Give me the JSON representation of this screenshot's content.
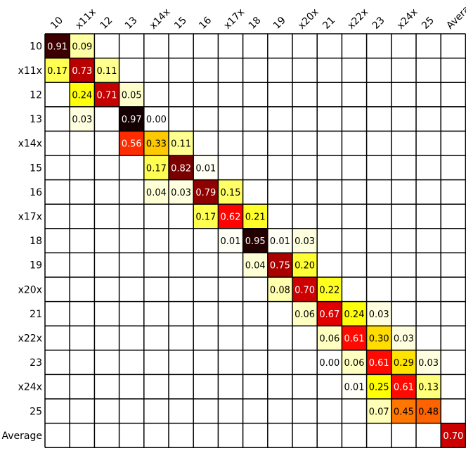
{
  "chart_data": {
    "type": "heatmap",
    "title": "",
    "xlabel": "",
    "ylabel": "",
    "x_labels": [
      "10",
      "x11x",
      "12",
      "13",
      "x14x",
      "15",
      "16",
      "x17x",
      "18",
      "19",
      "x20x",
      "21",
      "x22x",
      "23",
      "x24x",
      "25",
      "Average"
    ],
    "y_labels": [
      "10",
      "x11x",
      "12",
      "13",
      "x14x",
      "15",
      "16",
      "x17x",
      "18",
      "19",
      "x20x",
      "21",
      "x22x",
      "23",
      "x24x",
      "25",
      "Average"
    ],
    "colormap": "hot_r",
    "cells": [
      {
        "row": 0,
        "col": 0,
        "value": 0.91,
        "label": "0.91"
      },
      {
        "row": 0,
        "col": 1,
        "value": 0.09,
        "label": "0.09"
      },
      {
        "row": 1,
        "col": 0,
        "value": 0.17,
        "label": "0.17"
      },
      {
        "row": 1,
        "col": 1,
        "value": 0.73,
        "label": "0.73"
      },
      {
        "row": 1,
        "col": 2,
        "value": 0.11,
        "label": "0.11"
      },
      {
        "row": 2,
        "col": 1,
        "value": 0.24,
        "label": "0.24"
      },
      {
        "row": 2,
        "col": 2,
        "value": 0.71,
        "label": "0.71"
      },
      {
        "row": 2,
        "col": 3,
        "value": 0.05,
        "label": "0.05"
      },
      {
        "row": 3,
        "col": 1,
        "value": 0.03,
        "label": "0.03"
      },
      {
        "row": 3,
        "col": 3,
        "value": 0.97,
        "label": "0.97"
      },
      {
        "row": 3,
        "col": 4,
        "value": 0.0,
        "label": "0.00"
      },
      {
        "row": 4,
        "col": 3,
        "value": 0.56,
        "label": "0.56"
      },
      {
        "row": 4,
        "col": 4,
        "value": 0.33,
        "label": "0.33"
      },
      {
        "row": 4,
        "col": 5,
        "value": 0.11,
        "label": "0.11"
      },
      {
        "row": 5,
        "col": 4,
        "value": 0.17,
        "label": "0.17"
      },
      {
        "row": 5,
        "col": 5,
        "value": 0.82,
        "label": "0.82"
      },
      {
        "row": 5,
        "col": 6,
        "value": 0.01,
        "label": "0.01"
      },
      {
        "row": 6,
        "col": 4,
        "value": 0.04,
        "label": "0.04"
      },
      {
        "row": 6,
        "col": 5,
        "value": 0.03,
        "label": "0.03"
      },
      {
        "row": 6,
        "col": 6,
        "value": 0.79,
        "label": "0.79"
      },
      {
        "row": 6,
        "col": 7,
        "value": 0.15,
        "label": "0.15"
      },
      {
        "row": 7,
        "col": 6,
        "value": 0.17,
        "label": "0.17"
      },
      {
        "row": 7,
        "col": 7,
        "value": 0.62,
        "label": "0.62"
      },
      {
        "row": 7,
        "col": 8,
        "value": 0.21,
        "label": "0.21"
      },
      {
        "row": 8,
        "col": 7,
        "value": 0.01,
        "label": "0.01"
      },
      {
        "row": 8,
        "col": 8,
        "value": 0.95,
        "label": "0.95"
      },
      {
        "row": 8,
        "col": 9,
        "value": 0.01,
        "label": "0.01"
      },
      {
        "row": 8,
        "col": 10,
        "value": 0.03,
        "label": "0.03"
      },
      {
        "row": 9,
        "col": 8,
        "value": 0.04,
        "label": "0.04"
      },
      {
        "row": 9,
        "col": 9,
        "value": 0.75,
        "label": "0.75"
      },
      {
        "row": 9,
        "col": 10,
        "value": 0.2,
        "label": "0.20"
      },
      {
        "row": 10,
        "col": 9,
        "value": 0.08,
        "label": "0.08"
      },
      {
        "row": 10,
        "col": 10,
        "value": 0.7,
        "label": "0.70"
      },
      {
        "row": 10,
        "col": 11,
        "value": 0.22,
        "label": "0.22"
      },
      {
        "row": 11,
        "col": 10,
        "value": 0.06,
        "label": "0.06"
      },
      {
        "row": 11,
        "col": 11,
        "value": 0.67,
        "label": "0.67"
      },
      {
        "row": 11,
        "col": 12,
        "value": 0.24,
        "label": "0.24"
      },
      {
        "row": 11,
        "col": 13,
        "value": 0.03,
        "label": "0.03"
      },
      {
        "row": 12,
        "col": 11,
        "value": 0.06,
        "label": "0.06"
      },
      {
        "row": 12,
        "col": 12,
        "value": 0.61,
        "label": "0.61"
      },
      {
        "row": 12,
        "col": 13,
        "value": 0.3,
        "label": "0.30"
      },
      {
        "row": 12,
        "col": 14,
        "value": 0.03,
        "label": "0.03"
      },
      {
        "row": 13,
        "col": 11,
        "value": 0.0,
        "label": "0.00"
      },
      {
        "row": 13,
        "col": 12,
        "value": 0.06,
        "label": "0.06"
      },
      {
        "row": 13,
        "col": 13,
        "value": 0.61,
        "label": "0.61"
      },
      {
        "row": 13,
        "col": 14,
        "value": 0.29,
        "label": "0.29"
      },
      {
        "row": 13,
        "col": 15,
        "value": 0.03,
        "label": "0.03"
      },
      {
        "row": 14,
        "col": 12,
        "value": 0.01,
        "label": "0.01"
      },
      {
        "row": 14,
        "col": 13,
        "value": 0.25,
        "label": "0.25"
      },
      {
        "row": 14,
        "col": 14,
        "value": 0.61,
        "label": "0.61"
      },
      {
        "row": 14,
        "col": 15,
        "value": 0.13,
        "label": "0.13"
      },
      {
        "row": 15,
        "col": 13,
        "value": 0.07,
        "label": "0.07"
      },
      {
        "row": 15,
        "col": 14,
        "value": 0.45,
        "label": "0.45"
      },
      {
        "row": 15,
        "col": 15,
        "value": 0.48,
        "label": "0.48"
      },
      {
        "row": 16,
        "col": 16,
        "value": 0.7,
        "label": "0.70"
      }
    ],
    "grid": true,
    "legend": "none"
  }
}
